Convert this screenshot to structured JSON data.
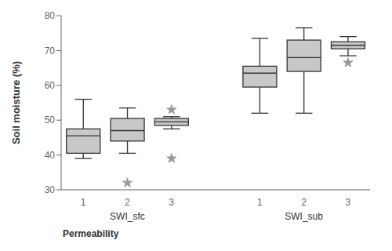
{
  "chart_data": {
    "type": "box",
    "ylabel": "Soil moisture  (%)",
    "xlabel": "Permeability",
    "ylim": [
      30,
      80
    ],
    "yticks": [
      30,
      40,
      50,
      60,
      70,
      80
    ],
    "grid": false,
    "color": "#c8c8c8",
    "marker": "star",
    "boxes": [
      {
        "category": "1",
        "group": "SWI_sfc",
        "q1": 40.5,
        "median": 45.5,
        "q3": 47.5,
        "whislo": 39.0,
        "whishi": 56.0,
        "fliers": []
      },
      {
        "category": "2",
        "group": "SWI_sfc",
        "q1": 44.0,
        "median": 47.0,
        "q3": 50.5,
        "whislo": 40.5,
        "whishi": 53.5,
        "fliers": [
          32.0
        ]
      },
      {
        "category": "3",
        "group": "SWI_sfc",
        "q1": 48.5,
        "median": 49.5,
        "q3": 50.5,
        "whislo": 47.5,
        "whishi": 51.0,
        "fliers": [
          39.0,
          53.0
        ]
      },
      {
        "category": "1",
        "group": "SWI_sub",
        "q1": 59.5,
        "median": 63.5,
        "q3": 65.5,
        "whislo": 52.0,
        "whishi": 73.5,
        "fliers": []
      },
      {
        "category": "2",
        "group": "SWI_sub",
        "q1": 64.0,
        "median": 68.0,
        "q3": 73.0,
        "whislo": 52.0,
        "whishi": 76.5,
        "fliers": []
      },
      {
        "category": "3",
        "group": "SWI_sub",
        "q1": 70.5,
        "median": 71.5,
        "q3": 72.5,
        "whislo": 68.5,
        "whishi": 74.0,
        "fliers": [
          66.5
        ]
      }
    ]
  }
}
